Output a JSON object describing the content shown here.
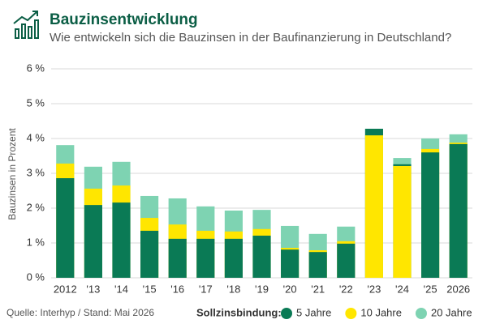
{
  "chart_data": {
    "type": "bar",
    "title": "Bauzinsentwicklung",
    "subtitle": "Wie entwickeln sich die Bauzinsen in der Baufinanzierung in Deutschland?",
    "y_label": "Bauzinsen in Prozent",
    "source": "Quelle: Interhyp  /  Stand: Mai 2026",
    "legend_title": "Sollzinsbindung:",
    "categories": [
      "2012",
      "'13",
      "'14",
      "'15",
      "'16",
      "'17",
      "'18",
      "'19",
      "'20",
      "'21",
      "'22",
      "'23",
      "'24",
      "'25",
      "2026"
    ],
    "series": [
      {
        "name": "5 Jahre",
        "color": "#0a7a55",
        "values": [
          2.86,
          2.09,
          2.16,
          1.35,
          1.12,
          1.12,
          1.12,
          1.21,
          0.81,
          0.74,
          0.98,
          4.28,
          3.26,
          3.6,
          3.84
        ]
      },
      {
        "name": "10 Jahre",
        "color": "#ffe600",
        "values": [
          3.28,
          2.56,
          2.65,
          1.72,
          1.53,
          1.35,
          1.33,
          1.4,
          0.86,
          0.79,
          1.05,
          4.09,
          3.21,
          3.7,
          3.88
        ]
      },
      {
        "name": "20 Jahre",
        "color": "#7ed3b2",
        "values": [
          3.81,
          3.19,
          3.33,
          2.35,
          2.28,
          2.05,
          1.93,
          1.95,
          1.49,
          1.26,
          1.47,
          null,
          3.44,
          4.0,
          4.12
        ]
      }
    ],
    "ylim": [
      0,
      6
    ],
    "yticks": [
      {
        "value": 0,
        "label": "0 %"
      },
      {
        "value": 1,
        "label": "1 %"
      },
      {
        "value": 2,
        "label": "2 %"
      },
      {
        "value": 3,
        "label": "3 %"
      },
      {
        "value": 4,
        "label": "4 %"
      },
      {
        "value": 5,
        "label": "5 %"
      },
      {
        "value": 6,
        "label": "6 %"
      }
    ],
    "grid": true
  }
}
